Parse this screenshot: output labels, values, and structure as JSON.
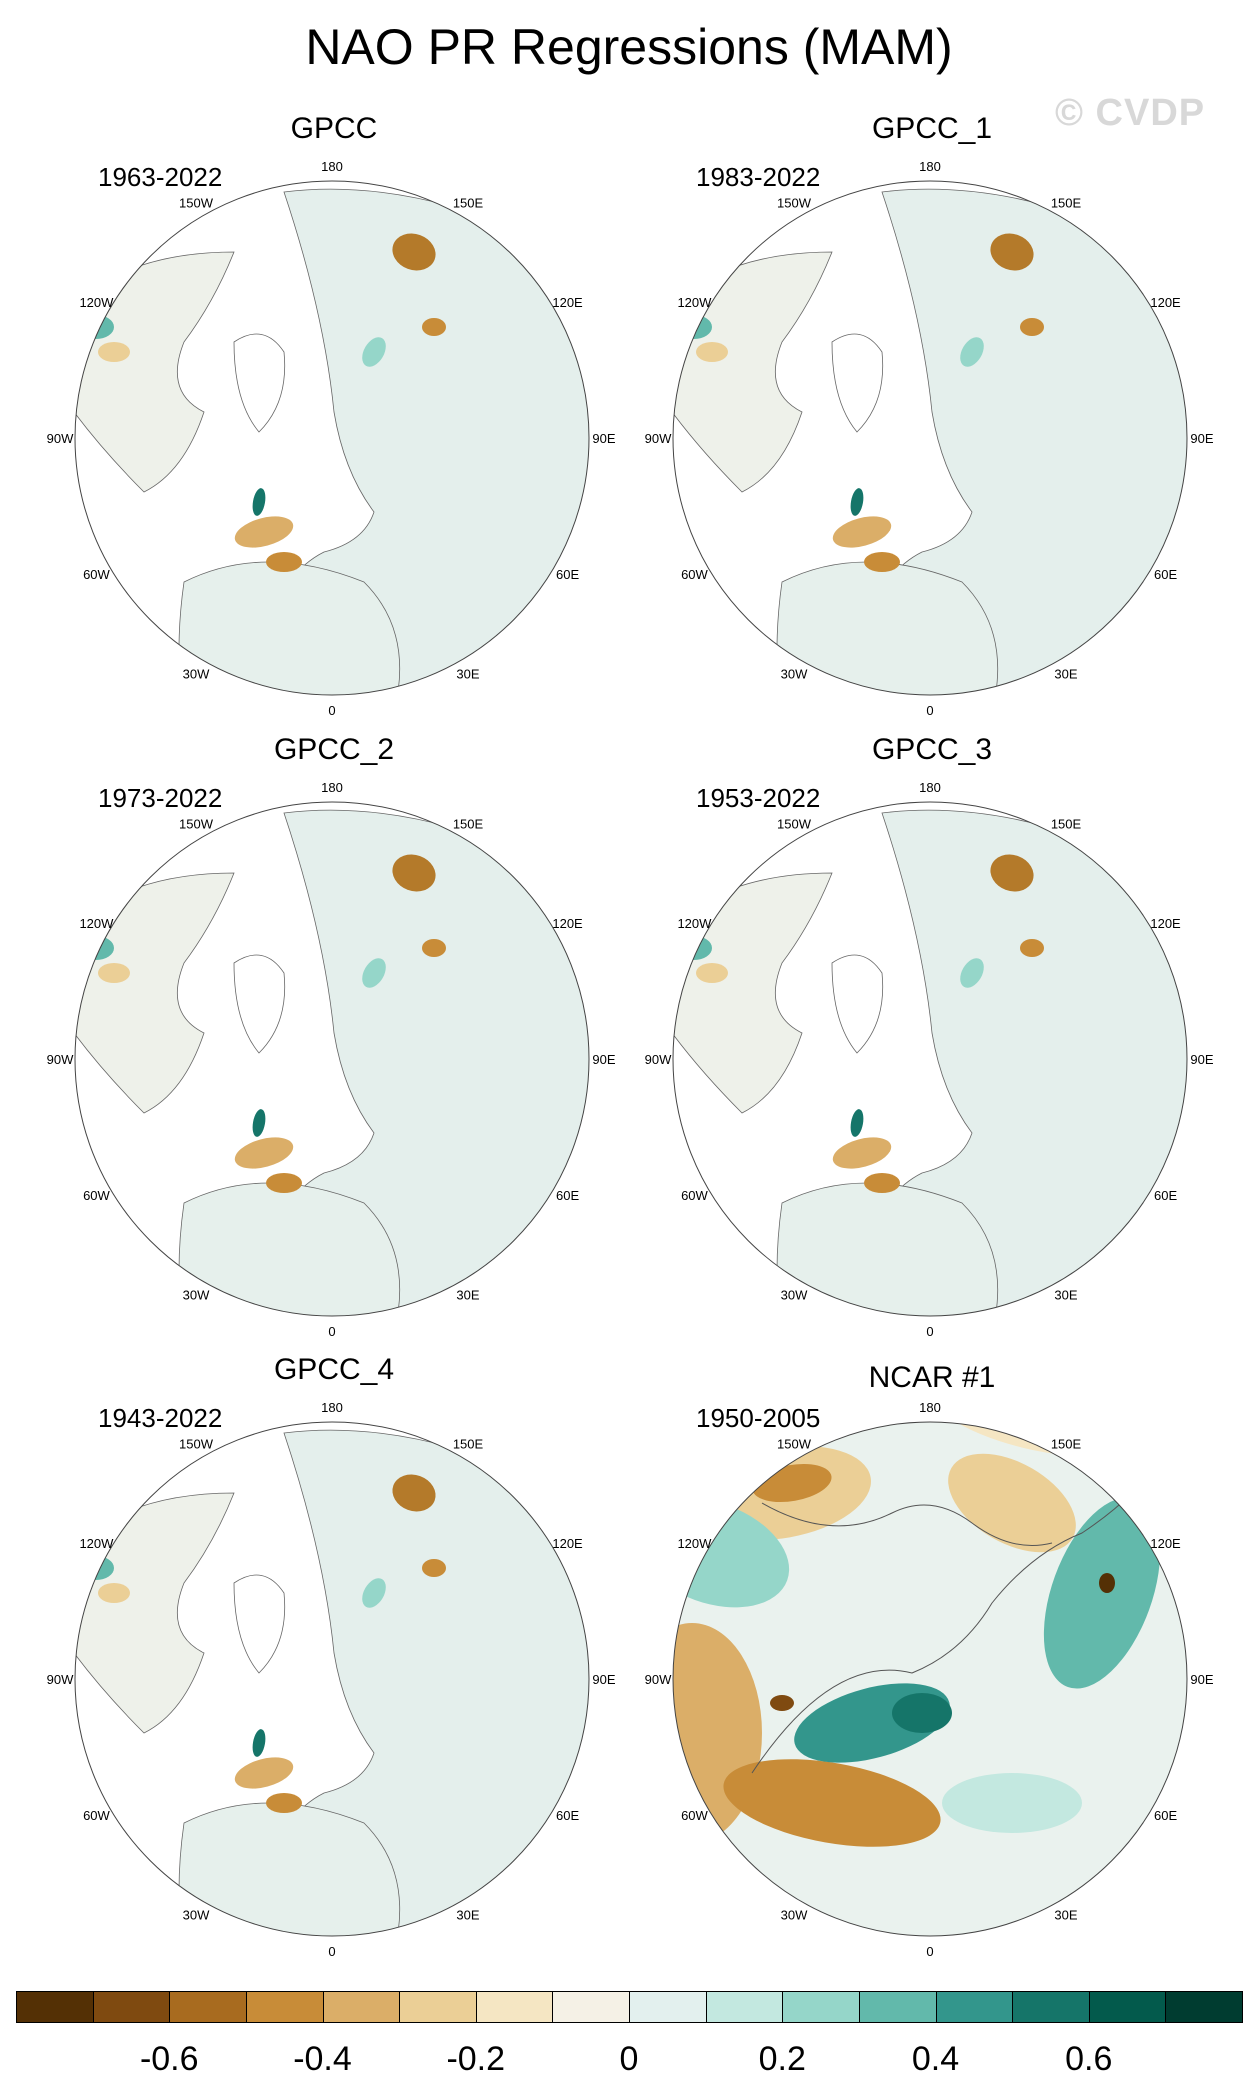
{
  "title": "NAO PR Regressions (MAM)",
  "watermark": "© CVDP",
  "lon_labels": [
    "180",
    "150E",
    "120E",
    "90E",
    "60E",
    "30E",
    "0",
    "30W",
    "60W",
    "90W",
    "120W",
    "150W"
  ],
  "panels": [
    {
      "name": "GPCC",
      "period": "1963-2022",
      "type": "obs"
    },
    {
      "name": "GPCC_1",
      "period": "1983-2022",
      "type": "obs"
    },
    {
      "name": "GPCC_2",
      "period": "1973-2022",
      "type": "obs"
    },
    {
      "name": "GPCC_3",
      "period": "1953-2022",
      "type": "obs"
    },
    {
      "name": "GPCC_4",
      "period": "1943-2022",
      "type": "obs"
    },
    {
      "name": "NCAR #1",
      "period": "1950-2005",
      "type": "model"
    }
  ],
  "chart_data": {
    "type": "heatmap",
    "projection": "north polar stereographic",
    "variable": "PR regression onto NAO",
    "season": "MAM",
    "colorbar": {
      "levels": [
        -0.7,
        -0.6,
        -0.5,
        -0.4,
        -0.3,
        -0.2,
        -0.1,
        0,
        0.1,
        0.2,
        0.3,
        0.4,
        0.5,
        0.6,
        0.7
      ],
      "colors": [
        "#543005",
        "#7f4a10",
        "#a86b1f",
        "#c88c38",
        "#dbae68",
        "#ebcf96",
        "#f5e6c3",
        "#f5f1e6",
        "#e3f0ee",
        "#c3e8e0",
        "#95d6c9",
        "#62b9ab",
        "#33968c",
        "#157569",
        "#035a4c",
        "#003c30"
      ],
      "tick_labels": [
        "-0.6",
        "-0.4",
        "-0.2",
        "0",
        "0.2",
        "0.4",
        "0.6"
      ]
    }
  }
}
